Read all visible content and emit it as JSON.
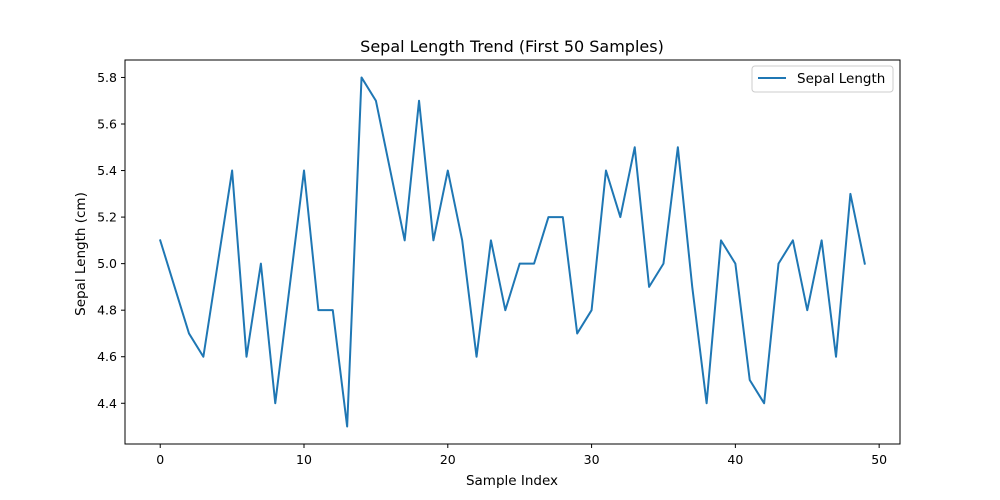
{
  "chart_data": {
    "type": "line",
    "title": "Sepal Length Trend (First 50 Samples)",
    "xlabel": "Sample Index",
    "ylabel": "Sepal Length (cm)",
    "xlim": [
      -2.45,
      51.45
    ],
    "ylim": [
      4.225,
      5.875
    ],
    "xticks": [
      0,
      10,
      20,
      30,
      40,
      50
    ],
    "yticks": [
      "4.4",
      "4.6",
      "4.8",
      "5.0",
      "5.2",
      "5.4",
      "5.6",
      "5.8"
    ],
    "grid": false,
    "legend_position": "top-right",
    "series": [
      {
        "name": "Sepal Length",
        "color": "#1f77b4",
        "x": [
          0,
          1,
          2,
          3,
          4,
          5,
          6,
          7,
          8,
          9,
          10,
          11,
          12,
          13,
          14,
          15,
          16,
          17,
          18,
          19,
          20,
          21,
          22,
          23,
          24,
          25,
          26,
          27,
          28,
          29,
          30,
          31,
          32,
          33,
          34,
          35,
          36,
          37,
          38,
          39,
          40,
          41,
          42,
          43,
          44,
          45,
          46,
          47,
          48,
          49
        ],
        "values": [
          5.1,
          4.9,
          4.7,
          4.6,
          5.0,
          5.4,
          4.6,
          5.0,
          4.4,
          4.9,
          5.4,
          4.8,
          4.8,
          4.3,
          5.8,
          5.7,
          5.4,
          5.1,
          5.7,
          5.1,
          5.4,
          5.1,
          4.6,
          5.1,
          4.8,
          5.0,
          5.0,
          5.2,
          5.2,
          4.7,
          4.8,
          5.4,
          5.2,
          5.5,
          4.9,
          5.0,
          5.5,
          4.9,
          4.4,
          5.1,
          5.0,
          4.5,
          4.4,
          5.0,
          5.1,
          4.8,
          5.1,
          4.6,
          5.3,
          5.0
        ]
      }
    ]
  }
}
